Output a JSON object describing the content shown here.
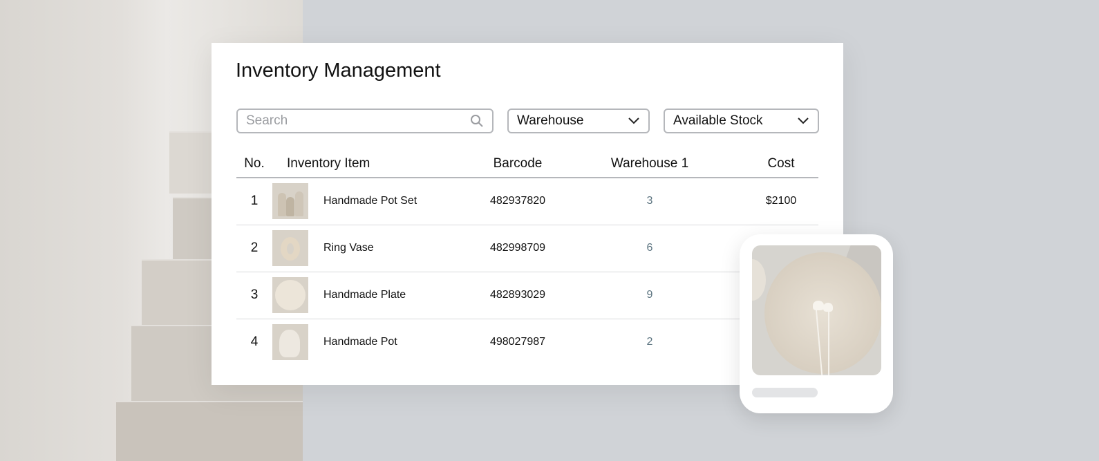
{
  "title": "Inventory Management",
  "search": {
    "placeholder": "Search",
    "icon": "search-icon"
  },
  "filters": [
    {
      "label": "Warehouse",
      "icon": "chevron-down-icon"
    },
    {
      "label": "Available Stock",
      "icon": "chevron-down-icon"
    }
  ],
  "table": {
    "columns": [
      "No.",
      "Inventory Item",
      "Barcode",
      "Warehouse 1",
      "Cost"
    ],
    "rows": [
      {
        "no": "1",
        "item": "Handmade Pot Set",
        "barcode": "482937820",
        "stock": "3",
        "cost": "$2100"
      },
      {
        "no": "2",
        "item": "Ring Vase",
        "barcode": "482998709",
        "stock": "6",
        "cost": ""
      },
      {
        "no": "3",
        "item": "Handmade Plate",
        "barcode": "482893029",
        "stock": "9",
        "cost": ""
      },
      {
        "no": "4",
        "item": "Handmade Pot",
        "barcode": "498027987",
        "stock": "2",
        "cost": ""
      }
    ]
  },
  "colors": {
    "stock_text": "#5c7480",
    "background": "#d0d3d7"
  }
}
